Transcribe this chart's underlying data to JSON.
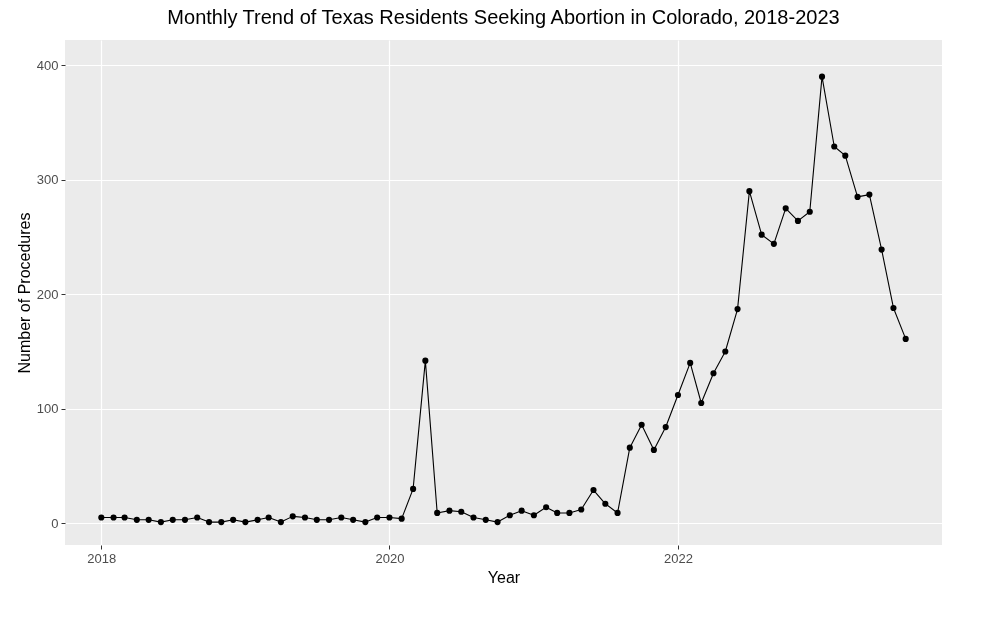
{
  "chart_data": {
    "type": "line",
    "title": "Monthly Trend of Texas Residents Seeking Abortion in Colorado, 2018-2023",
    "xlabel": "Year",
    "ylabel": "Number of Procedures",
    "x": [
      "2018-01",
      "2018-02",
      "2018-03",
      "2018-04",
      "2018-05",
      "2018-06",
      "2018-07",
      "2018-08",
      "2018-09",
      "2018-10",
      "2018-11",
      "2018-12",
      "2019-01",
      "2019-02",
      "2019-03",
      "2019-04",
      "2019-05",
      "2019-06",
      "2019-07",
      "2019-08",
      "2019-09",
      "2019-10",
      "2019-11",
      "2019-12",
      "2020-01",
      "2020-02",
      "2020-03",
      "2020-04",
      "2020-05",
      "2020-06",
      "2020-07",
      "2020-08",
      "2020-09",
      "2020-10",
      "2020-11",
      "2020-12",
      "2021-01",
      "2021-02",
      "2021-03",
      "2021-04",
      "2021-05",
      "2021-06",
      "2021-07",
      "2021-08",
      "2021-09",
      "2021-10",
      "2021-11",
      "2021-12",
      "2022-01",
      "2022-02",
      "2022-03",
      "2022-04",
      "2022-05",
      "2022-06",
      "2022-07",
      "2022-08",
      "2022-09",
      "2022-10",
      "2022-11",
      "2022-12",
      "2023-01",
      "2023-02",
      "2023-03",
      "2023-04",
      "2023-05",
      "2023-06",
      "2023-07",
      "2023-08"
    ],
    "series": [
      {
        "color": "#000000",
        "values": [
          5,
          5,
          5,
          3,
          3,
          1,
          3,
          3,
          5,
          1,
          1,
          3,
          1,
          3,
          5,
          1,
          6,
          5,
          3,
          3,
          5,
          3,
          1,
          5,
          5,
          4,
          30,
          142,
          9,
          11,
          10,
          5,
          3,
          1,
          7,
          11,
          7,
          14,
          9,
          9,
          12,
          29,
          17,
          9,
          66,
          86,
          64,
          84,
          112,
          140,
          105,
          131,
          150,
          187,
          290,
          252,
          244,
          275,
          264,
          272,
          390,
          329,
          321,
          285,
          287,
          239,
          188,
          161
        ]
      }
    ],
    "xlim": [
      "2017-10",
      "2023-11"
    ],
    "xticks": [
      "2018",
      "2020",
      "2022"
    ],
    "ylim": [
      -19,
      422
    ],
    "yticks": [
      0,
      100,
      200,
      300,
      400
    ],
    "grid": true,
    "marker": "circle",
    "line_style": "solid",
    "legend": false
  }
}
